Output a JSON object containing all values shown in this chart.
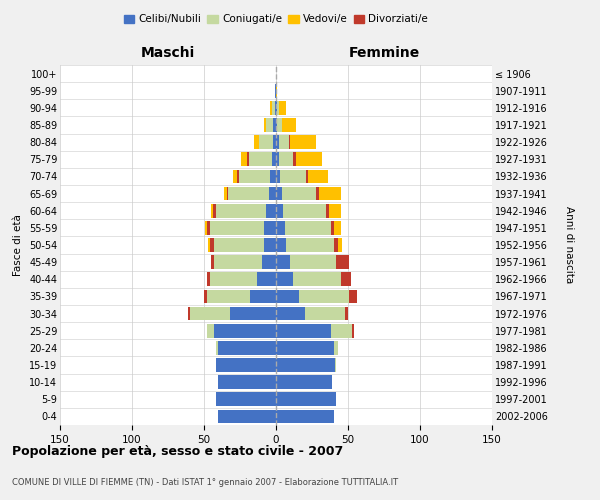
{
  "age_groups": [
    "0-4",
    "5-9",
    "10-14",
    "15-19",
    "20-24",
    "25-29",
    "30-34",
    "35-39",
    "40-44",
    "45-49",
    "50-54",
    "55-59",
    "60-64",
    "65-69",
    "70-74",
    "75-79",
    "80-84",
    "85-89",
    "90-94",
    "95-99",
    "100+"
  ],
  "birth_years": [
    "2002-2006",
    "1997-2001",
    "1992-1996",
    "1987-1991",
    "1982-1986",
    "1977-1981",
    "1972-1976",
    "1967-1971",
    "1962-1966",
    "1957-1961",
    "1952-1956",
    "1947-1951",
    "1942-1946",
    "1937-1941",
    "1932-1936",
    "1927-1931",
    "1922-1926",
    "1917-1921",
    "1912-1916",
    "1907-1911",
    "≤ 1906"
  ],
  "maschi": {
    "celibi": [
      40,
      42,
      40,
      42,
      40,
      43,
      32,
      18,
      13,
      10,
      8,
      8,
      7,
      5,
      4,
      3,
      2,
      2,
      1,
      1,
      0
    ],
    "coniugati": [
      0,
      0,
      0,
      0,
      2,
      5,
      28,
      30,
      33,
      33,
      35,
      38,
      35,
      28,
      22,
      16,
      10,
      5,
      2,
      0,
      0
    ],
    "vedovi": [
      0,
      0,
      0,
      0,
      0,
      0,
      0,
      0,
      0,
      0,
      1,
      1,
      1,
      2,
      3,
      4,
      3,
      1,
      1,
      0,
      0
    ],
    "divorziati": [
      0,
      0,
      0,
      0,
      0,
      0,
      1,
      2,
      2,
      2,
      3,
      2,
      2,
      1,
      1,
      1,
      0,
      0,
      0,
      0,
      0
    ]
  },
  "femmine": {
    "nubili": [
      40,
      42,
      39,
      41,
      40,
      38,
      20,
      16,
      12,
      10,
      7,
      6,
      5,
      4,
      3,
      2,
      2,
      1,
      1,
      0,
      0
    ],
    "coniugate": [
      0,
      0,
      0,
      1,
      3,
      15,
      28,
      35,
      33,
      32,
      33,
      32,
      30,
      24,
      18,
      10,
      7,
      3,
      1,
      0,
      0
    ],
    "vedove": [
      0,
      0,
      0,
      0,
      0,
      0,
      0,
      0,
      0,
      0,
      3,
      5,
      8,
      15,
      14,
      18,
      18,
      10,
      5,
      1,
      0
    ],
    "divorziate": [
      0,
      0,
      0,
      0,
      0,
      1,
      2,
      5,
      7,
      9,
      3,
      2,
      2,
      2,
      1,
      2,
      1,
      0,
      0,
      0,
      0
    ]
  },
  "colors": {
    "celibi_nubili": "#4472c4",
    "coniugati": "#c5d9a0",
    "vedovi": "#ffc000",
    "divorziati": "#c0392b"
  },
  "xlim": 150,
  "title": "Popolazione per età, sesso e stato civile - 2007",
  "subtitle": "COMUNE DI VILLE DI FIEMME (TN) - Dati ISTAT 1° gennaio 2007 - Elaborazione TUTTITALIA.IT",
  "xlabel_left": "Maschi",
  "xlabel_right": "Femmine",
  "ylabel_left": "Fasce di età",
  "ylabel_right": "Anni di nascita",
  "legend_labels": [
    "Celibi/Nubili",
    "Coniugati/e",
    "Vedovi/e",
    "Divorziati/e"
  ],
  "bg_color": "#f0f0f0",
  "plot_bg_color": "#ffffff"
}
